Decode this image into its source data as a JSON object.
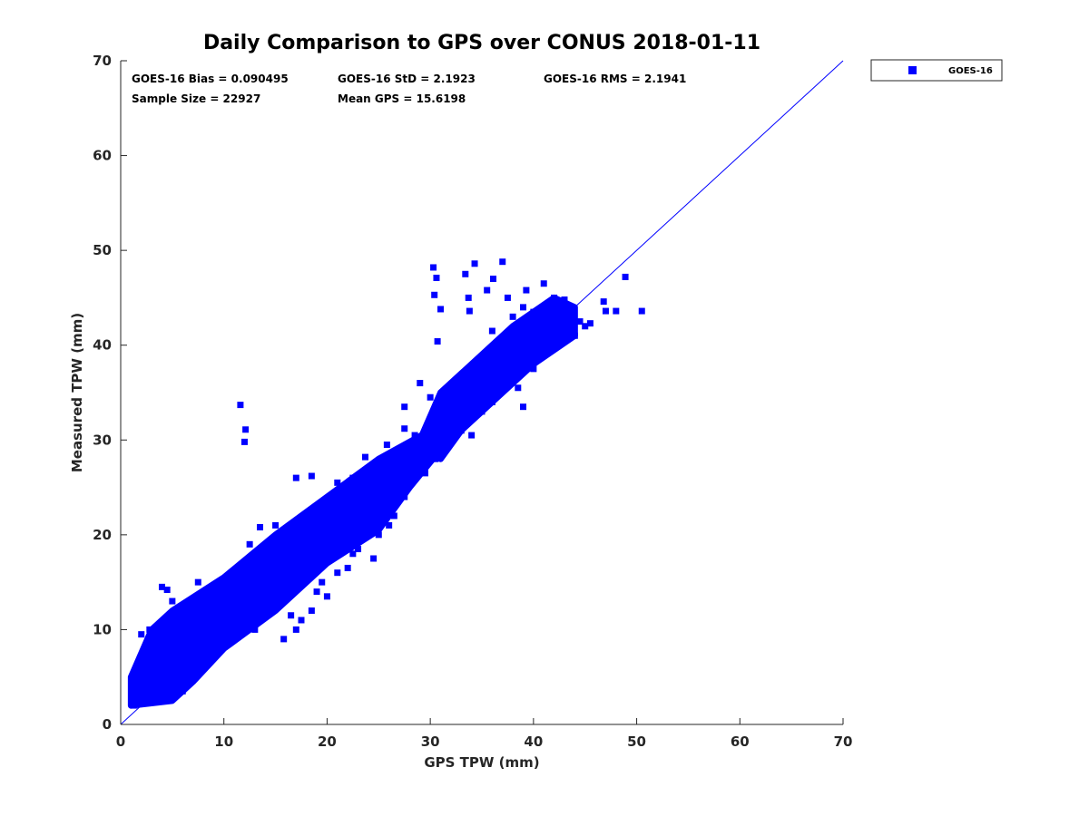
{
  "chart_data": {
    "type": "scatter",
    "title": "Daily Comparison to GPS over CONUS 2018-01-11",
    "xlabel": "GPS TPW (mm)",
    "ylabel": "Measured TPW (mm)",
    "xlim": [
      0,
      70
    ],
    "ylim": [
      0,
      70
    ],
    "xticks": [
      0,
      10,
      20,
      30,
      40,
      50,
      60,
      70
    ],
    "yticks": [
      0,
      10,
      20,
      30,
      40,
      50,
      60,
      70
    ],
    "grid": false,
    "legend": {
      "placement": "outside-top-right",
      "entries": [
        "GOES-16"
      ]
    },
    "stats": [
      "GOES-16 Bias = 0.090495",
      "GOES-16 StD = 2.1923",
      "GOES-16 RMS = 2.1941",
      "Sample Size = 22927",
      "Mean GPS = 15.6198"
    ],
    "reference_line": {
      "label": "1:1",
      "from": [
        0,
        0
      ],
      "to": [
        70,
        70
      ]
    },
    "series": [
      {
        "name": "GOES-16",
        "color": "#0000ff",
        "marker": "square",
        "dense_regions": [
          [
            [
              1,
              2
            ],
            [
              1,
              5
            ],
            [
              3,
              10
            ],
            [
              5,
              12
            ],
            [
              10,
              15.5
            ],
            [
              15,
              20
            ],
            [
              20,
              24
            ],
            [
              25,
              28
            ],
            [
              30,
              31
            ],
            [
              31,
              29
            ],
            [
              28,
              25
            ],
            [
              25,
              20.5
            ],
            [
              20,
              17
            ],
            [
              15,
              12
            ],
            [
              10,
              8
            ],
            [
              7,
              4.5
            ],
            [
              5,
              2.5
            ],
            [
              1,
              2
            ]
          ],
          [
            [
              29,
              30
            ],
            [
              31,
              35
            ],
            [
              35,
              39
            ],
            [
              38,
              42
            ],
            [
              42,
              45
            ],
            [
              44,
              44
            ],
            [
              44,
              41
            ],
            [
              40,
              38
            ],
            [
              36,
              34
            ],
            [
              33,
              31
            ],
            [
              31,
              28
            ]
          ]
        ],
        "points": [
          [
            11.6,
            33.7
          ],
          [
            12.1,
            31.1
          ],
          [
            12,
            29.8
          ],
          [
            30.3,
            48.2
          ],
          [
            30.6,
            47.1
          ],
          [
            30.4,
            45.3
          ],
          [
            31,
            43.8
          ],
          [
            30.7,
            40.4
          ],
          [
            34.3,
            48.6
          ],
          [
            33.4,
            47.5
          ],
          [
            37,
            48.8
          ],
          [
            36.1,
            47
          ],
          [
            35.5,
            45.8
          ],
          [
            33.7,
            45
          ],
          [
            33.8,
            43.6
          ],
          [
            37.5,
            45
          ],
          [
            39.3,
            45.8
          ],
          [
            41,
            46.5
          ],
          [
            42,
            45
          ],
          [
            43,
            44.8
          ],
          [
            46.8,
            44.6
          ],
          [
            47,
            43.6
          ],
          [
            48,
            43.6
          ],
          [
            50.5,
            43.6
          ],
          [
            48.9,
            47.2
          ],
          [
            45,
            42
          ],
          [
            44,
            41
          ],
          [
            40,
            42
          ],
          [
            39,
            40
          ],
          [
            41,
            39
          ],
          [
            38,
            38
          ],
          [
            37,
            36
          ],
          [
            40,
            37.5
          ],
          [
            36,
            34
          ],
          [
            35,
            33
          ],
          [
            39,
            33.5
          ],
          [
            42,
            40.5
          ],
          [
            43,
            42
          ],
          [
            31.5,
            35
          ],
          [
            32,
            33
          ],
          [
            29,
            36
          ],
          [
            30,
            34.5
          ],
          [
            27.5,
            33.5
          ],
          [
            33,
            31
          ],
          [
            34,
            30.5
          ],
          [
            31.8,
            29.5
          ],
          [
            30.5,
            28
          ],
          [
            27.5,
            24
          ],
          [
            29.5,
            26.5
          ],
          [
            25,
            20
          ],
          [
            26,
            21
          ],
          [
            23,
            18.5
          ],
          [
            22,
            16.5
          ],
          [
            24.5,
            17.5
          ],
          [
            26.5,
            22
          ],
          [
            20,
            13.5
          ],
          [
            19.5,
            15
          ],
          [
            18.5,
            12
          ],
          [
            17.5,
            11
          ],
          [
            16.5,
            11.5
          ],
          [
            19,
            14
          ],
          [
            21,
            16
          ],
          [
            22.5,
            18
          ],
          [
            15.8,
            9
          ],
          [
            17,
            10
          ],
          [
            13,
            10
          ],
          [
            11.5,
            9.5
          ],
          [
            9.5,
            8
          ],
          [
            8.5,
            7
          ],
          [
            7,
            6
          ],
          [
            6,
            3.5
          ],
          [
            4.5,
            2.8
          ],
          [
            3,
            2.5
          ],
          [
            1.3,
            2
          ],
          [
            1.5,
            4.7
          ],
          [
            2,
            9.5
          ],
          [
            2.8,
            10
          ],
          [
            4,
            14.5
          ],
          [
            4.5,
            14.2
          ],
          [
            5,
            13
          ],
          [
            7.5,
            15
          ],
          [
            10,
            12.5
          ],
          [
            11,
            16
          ],
          [
            12.5,
            19
          ],
          [
            13.5,
            20.8
          ],
          [
            15,
            21
          ],
          [
            17,
            26
          ],
          [
            18.5,
            26.2
          ],
          [
            21,
            25.5
          ],
          [
            22.5,
            26
          ],
          [
            23.7,
            28.2
          ],
          [
            25.8,
            29.5
          ],
          [
            27.5,
            31.2
          ],
          [
            28.5,
            30.5
          ],
          [
            30.5,
            31.5
          ],
          [
            38,
            43
          ],
          [
            39,
            44
          ],
          [
            40,
            43.5
          ],
          [
            41.5,
            42
          ],
          [
            37.5,
            41
          ],
          [
            36,
            41.5
          ],
          [
            35,
            38
          ],
          [
            34,
            37
          ],
          [
            35.5,
            36.5
          ],
          [
            38.5,
            35.5
          ],
          [
            40.5,
            38.8
          ],
          [
            42.5,
            41
          ],
          [
            44.5,
            42.5
          ],
          [
            45.5,
            42.3
          ],
          [
            26.2,
            25.3
          ],
          [
            24,
            23
          ],
          [
            9,
            11.5
          ],
          [
            6.5,
            9
          ],
          [
            3.5,
            7
          ],
          [
            14,
            16.5
          ],
          [
            16,
            17
          ],
          [
            18,
            19.5
          ],
          [
            27,
            27
          ]
        ]
      }
    ]
  }
}
